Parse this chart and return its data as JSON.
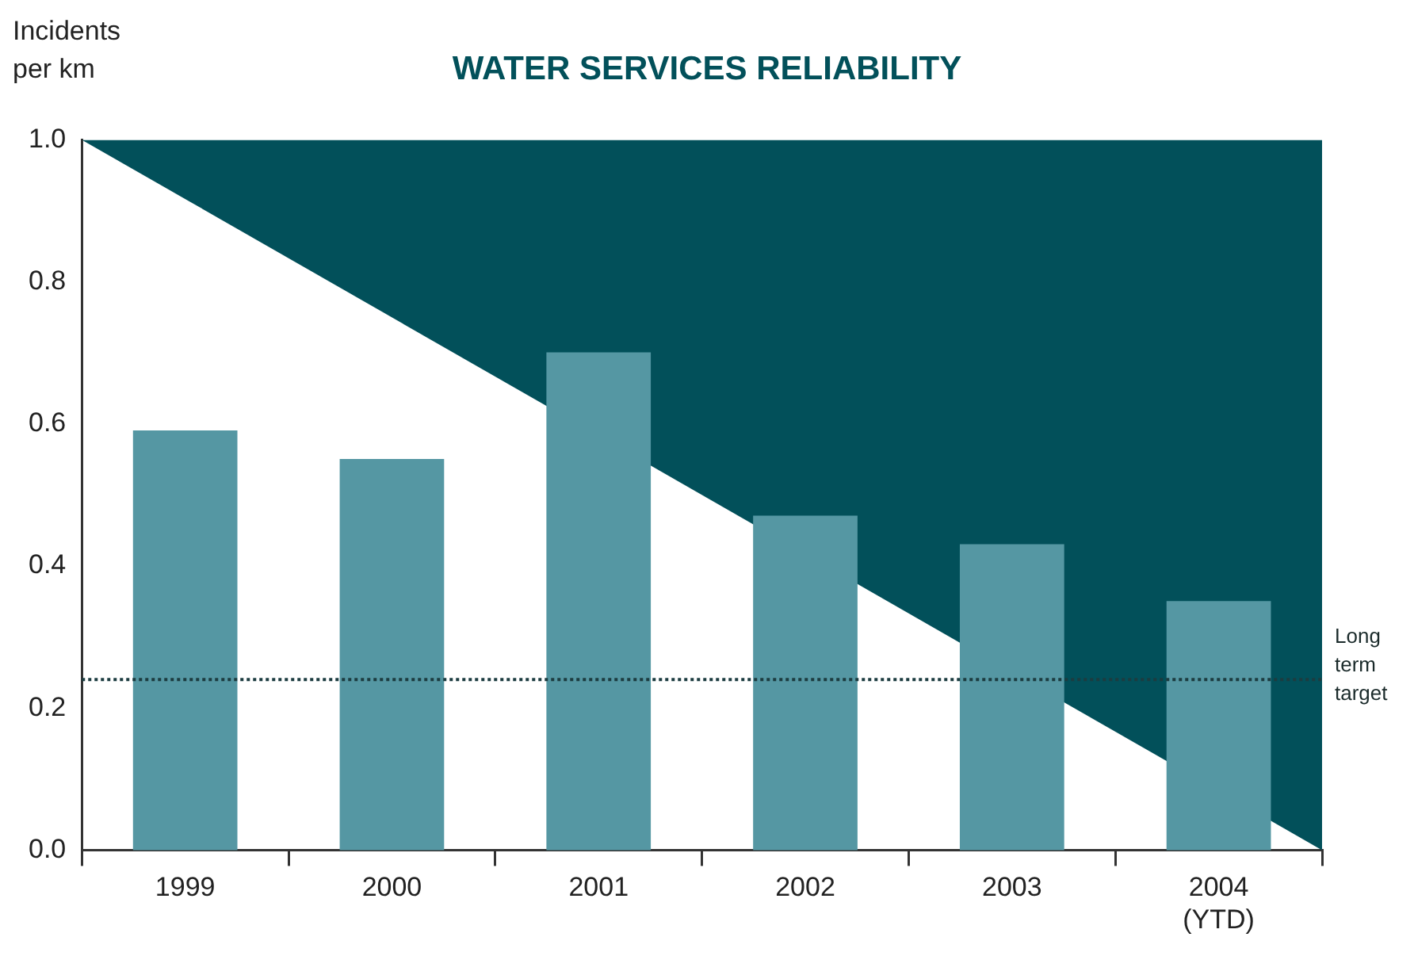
{
  "chart_data": {
    "type": "bar",
    "title": "WATER SERVICES RELIABILITY",
    "ylabel": "Incidents per km",
    "x": [
      1999,
      2000,
      2001,
      2002,
      2003,
      2004
    ],
    "series": [
      {
        "color": "#5597a3",
        "values": [
          0.59,
          0.55,
          0.7,
          0.47,
          0.43,
          0.35
        ]
      },
      {
        "type": "area",
        "color": "#02505a",
        "x": [
          1998.5,
          2004.5
        ],
        "values": [
          1.0,
          0.0
        ]
      }
    ],
    "xlim": [
      1998.5,
      2004.5
    ],
    "xticks": [
      {
        "value": 1998.5,
        "label": null
      },
      1999,
      {
        "value": 1999.5,
        "label": null
      },
      2000,
      {
        "value": 2000.5,
        "label": null
      },
      2001,
      {
        "value": 2001.5,
        "label": null
      },
      2002,
      {
        "value": 2002.5,
        "label": null
      },
      2003,
      {
        "value": 2003.5,
        "label": null
      },
      {
        "value": 2004,
        "label": "2004 (YTD)"
      },
      {
        "value": 2004.5,
        "label": null
      }
    ],
    "ylim": [
      0,
      1
    ],
    "yticks": [
      {
        "value": 0,
        "label": "0.0"
      },
      {
        "value": 0.2,
        "label": "0.2"
      },
      {
        "value": 0.4,
        "label": "0.4"
      },
      {
        "value": 0.6,
        "label": "0.6"
      },
      {
        "value": 0.8,
        "label": "0.8"
      },
      {
        "value": 1,
        "label": "1.0"
      }
    ],
    "ref_lines": [
      {
        "axis": "y",
        "value": 0.24,
        "label": "Long term target",
        "color": "#1c3c40",
        "line_style": "dotted"
      }
    ],
    "grid": false,
    "legend": false
  }
}
